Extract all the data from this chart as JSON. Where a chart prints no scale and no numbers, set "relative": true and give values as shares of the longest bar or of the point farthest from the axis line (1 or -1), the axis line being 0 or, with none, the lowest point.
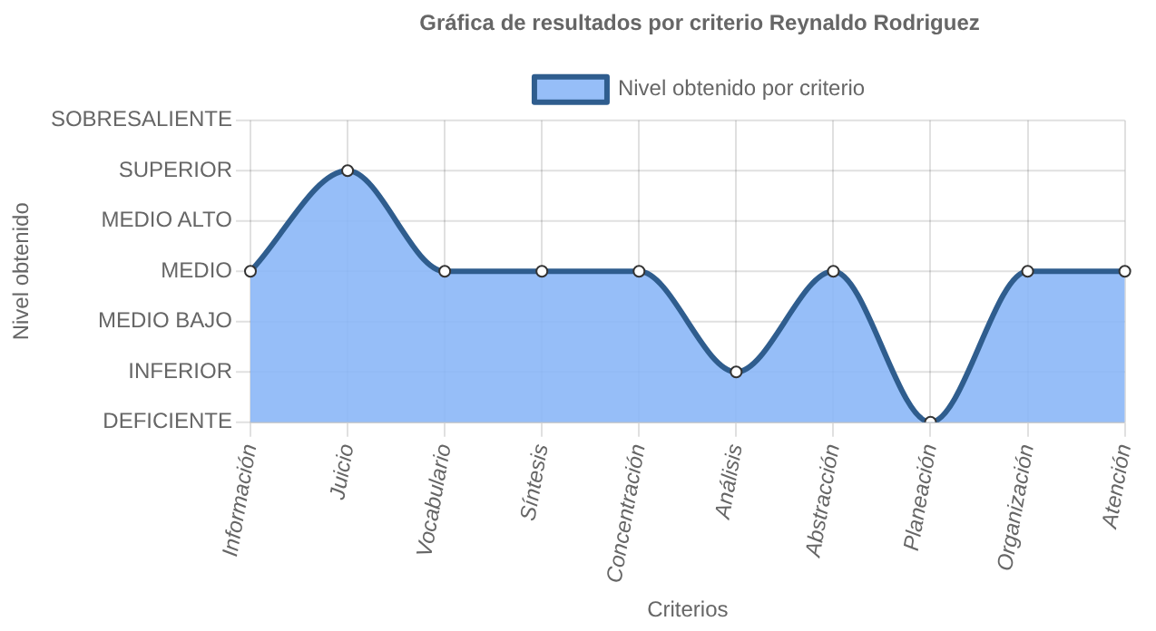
{
  "chart_data": {
    "type": "area",
    "title": "Gráfica de resultados por criterio Reynaldo Rodriguez",
    "xlabel": "Criterios",
    "annotations": [
      "Nivel obtenido"
    ],
    "categories": [
      "Información",
      "Juicio",
      "Vocabulario",
      "Síntesis",
      "Concentración",
      "Análisis",
      "Abstracción",
      "Planeación",
      "Organización",
      "Atención"
    ],
    "series": [
      {
        "name": "Nivel obtenido por criterio",
        "color": "#2f5d8e",
        "values": [
          0.6,
          1,
          0.6,
          0.6,
          0.6,
          0.2,
          0.6,
          0,
          0.6,
          0.6
        ]
      }
    ],
    "relative": true,
    "ref_lines": [
      {
        "axis": "y",
        "value": 0,
        "label": "DEFICIENTE"
      },
      {
        "axis": "y",
        "value": 0.2,
        "label": "INFERIOR"
      },
      {
        "axis": "y",
        "value": 0.4,
        "label": "MEDIO BAJO"
      },
      {
        "axis": "y",
        "value": 0.6,
        "label": "MEDIO"
      },
      {
        "axis": "y",
        "value": 0.8,
        "label": "MEDIO ALTO"
      },
      {
        "axis": "y",
        "value": 1,
        "label": "SUPERIOR"
      },
      {
        "axis": "y",
        "value": 1.2,
        "label": "SOBRESALIENTE"
      }
    ],
    "grid": "x",
    "legend": "top",
    "marker": "circle",
    "line_style": "solid"
  }
}
